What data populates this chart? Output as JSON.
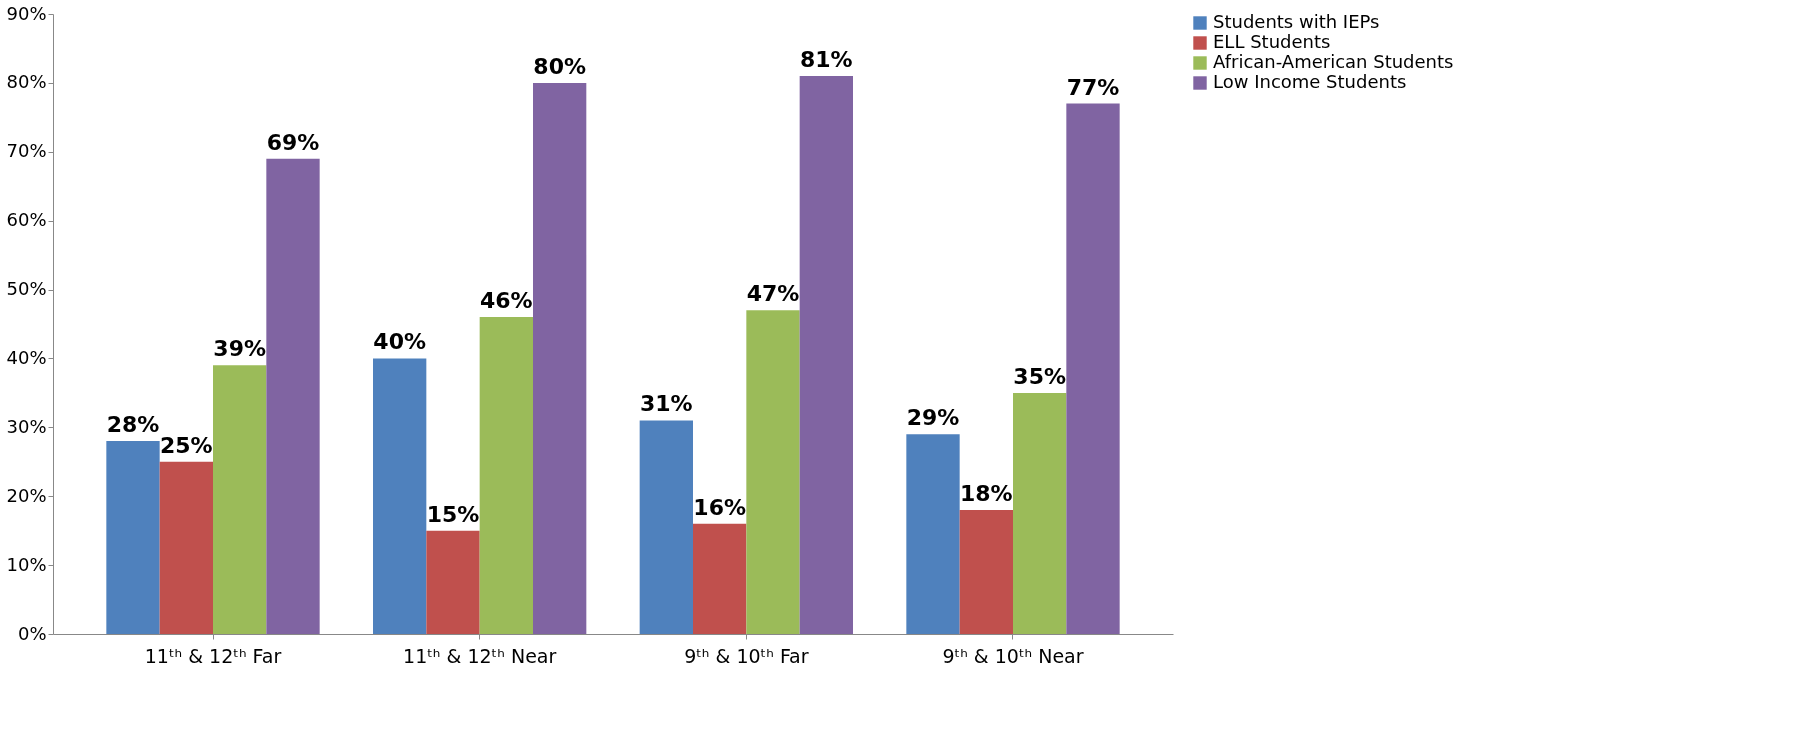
{
  "chart_data": {
    "type": "bar",
    "categories": [
      "11ᵗʰ & 12ᵗʰ Far",
      "11ᵗʰ & 12ᵗʰ Near",
      "9ᵗʰ & 10ᵗʰ Far",
      "9ᵗʰ & 10ᵗʰ Near"
    ],
    "series": [
      {
        "name": "Students with IEPs",
        "color": "#4f81bd",
        "values": [
          28,
          40,
          31,
          29
        ],
        "value_labels": [
          "28%",
          "40%",
          "31%",
          "29%"
        ]
      },
      {
        "name": "ELL Students",
        "color": "#c0504d",
        "values": [
          25,
          15,
          16,
          18
        ],
        "value_labels": [
          "25%",
          "15%",
          "16%",
          "18%"
        ]
      },
      {
        "name": "African-American Students",
        "color": "#9bbb59",
        "values": [
          39,
          46,
          47,
          35
        ],
        "value_labels": [
          "39%",
          "46%",
          "47%",
          "35%"
        ]
      },
      {
        "name": "Low Income Students",
        "color": "#8064a2",
        "values": [
          69,
          80,
          81,
          77
        ],
        "value_labels": [
          "69%",
          "80%",
          "81%",
          "77%"
        ]
      }
    ],
    "ylim": [
      0,
      90
    ],
    "yticks": [
      {
        "value": 0,
        "label": "0%"
      },
      {
        "value": 10,
        "label": "10%"
      },
      {
        "value": 20,
        "label": "20%"
      },
      {
        "value": 30,
        "label": "30%"
      },
      {
        "value": 40,
        "label": "40%"
      },
      {
        "value": 50,
        "label": "50%"
      },
      {
        "value": 60,
        "label": "60%"
      },
      {
        "value": 70,
        "label": "70%"
      },
      {
        "value": 80,
        "label": "80%"
      },
      {
        "value": 90,
        "label": "90%"
      }
    ],
    "grid": false,
    "legend": "right"
  }
}
